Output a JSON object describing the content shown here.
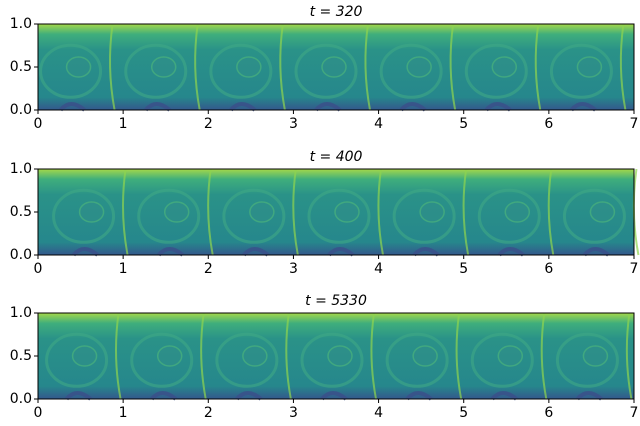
{
  "chart_data": [
    {
      "type": "heatmap",
      "title": "t = 320",
      "xlim": [
        0,
        7
      ],
      "ylim": [
        0,
        1
      ],
      "xticks": [
        0,
        1,
        2,
        3,
        4,
        5,
        6,
        7
      ],
      "yticks": [
        {
          "value": 0,
          "label": "0.0"
        },
        0.5,
        {
          "value": 1,
          "label": "1.0"
        }
      ]
    },
    {
      "type": "heatmap",
      "title": "t = 400",
      "xlim": [
        0,
        7
      ],
      "ylim": [
        0,
        1
      ],
      "xticks": [
        0,
        1,
        2,
        3,
        4,
        5,
        6,
        7
      ],
      "yticks": [
        {
          "value": 0,
          "label": "0.0"
        },
        0.5,
        {
          "value": 1,
          "label": "1.0"
        }
      ]
    },
    {
      "type": "heatmap",
      "title": "t = 5330",
      "xlim": [
        0,
        7
      ],
      "ylim": [
        0,
        1
      ],
      "xticks": [
        0,
        1,
        2,
        3,
        4,
        5,
        6,
        7
      ],
      "yticks": [
        {
          "value": 0,
          "label": "0.0"
        },
        0.5,
        {
          "value": 1,
          "label": "1.0"
        }
      ]
    }
  ]
}
